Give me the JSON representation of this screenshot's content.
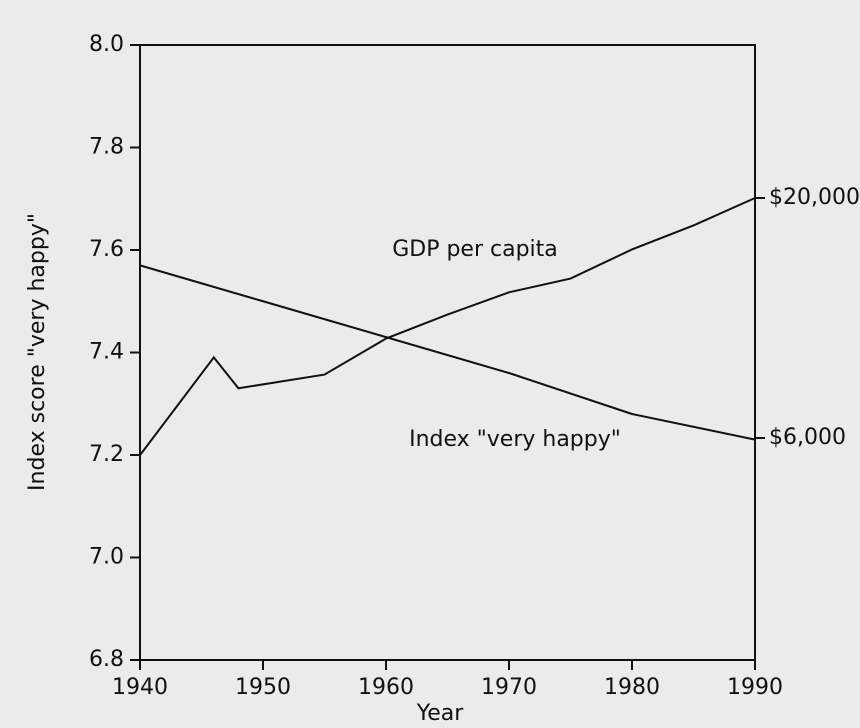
{
  "chart_data": {
    "type": "line",
    "xlabel": "Year",
    "ylabel": "Index score \"very happy\"",
    "xlim": [
      1940,
      1990
    ],
    "xticks": [
      1940,
      1950,
      1960,
      1970,
      1980,
      1990
    ],
    "ylim": [
      6.8,
      8.0
    ],
    "yticks": [
      {
        "value": 6.8,
        "label": "6.8"
      },
      {
        "value": 7.0,
        "label": "7.0"
      },
      {
        "value": 7.2,
        "label": "7.2"
      },
      {
        "value": 7.4,
        "label": "7.4"
      },
      {
        "value": 7.6,
        "label": "7.6"
      },
      {
        "value": 7.8,
        "label": "7.8"
      },
      {
        "value": 8.0,
        "label": "8.0"
      }
    ],
    "y2lim": [
      -6950,
      28925
    ],
    "y2ticks": [
      {
        "value": 6000,
        "label": "$6,000"
      },
      {
        "value": 20000,
        "label": "$20,000"
      }
    ],
    "series": [
      {
        "name": "GDP per capita",
        "color": "#111111",
        "axis": "y2",
        "x": [
          1940,
          1946,
          1948,
          1955,
          1960,
          1965,
          1970,
          1975,
          1980,
          1985,
          1990
        ],
        "values": [
          5000,
          10700,
          8900,
          9700,
          11800,
          13200,
          14500,
          15300,
          17000,
          18400,
          20000
        ]
      },
      {
        "name": "Index \"very happy\"",
        "color": "#111111",
        "x": [
          1940,
          1950,
          1960,
          1970,
          1980,
          1990
        ],
        "values": [
          7.57,
          7.5,
          7.43,
          7.36,
          7.28,
          7.23
        ]
      }
    ]
  }
}
